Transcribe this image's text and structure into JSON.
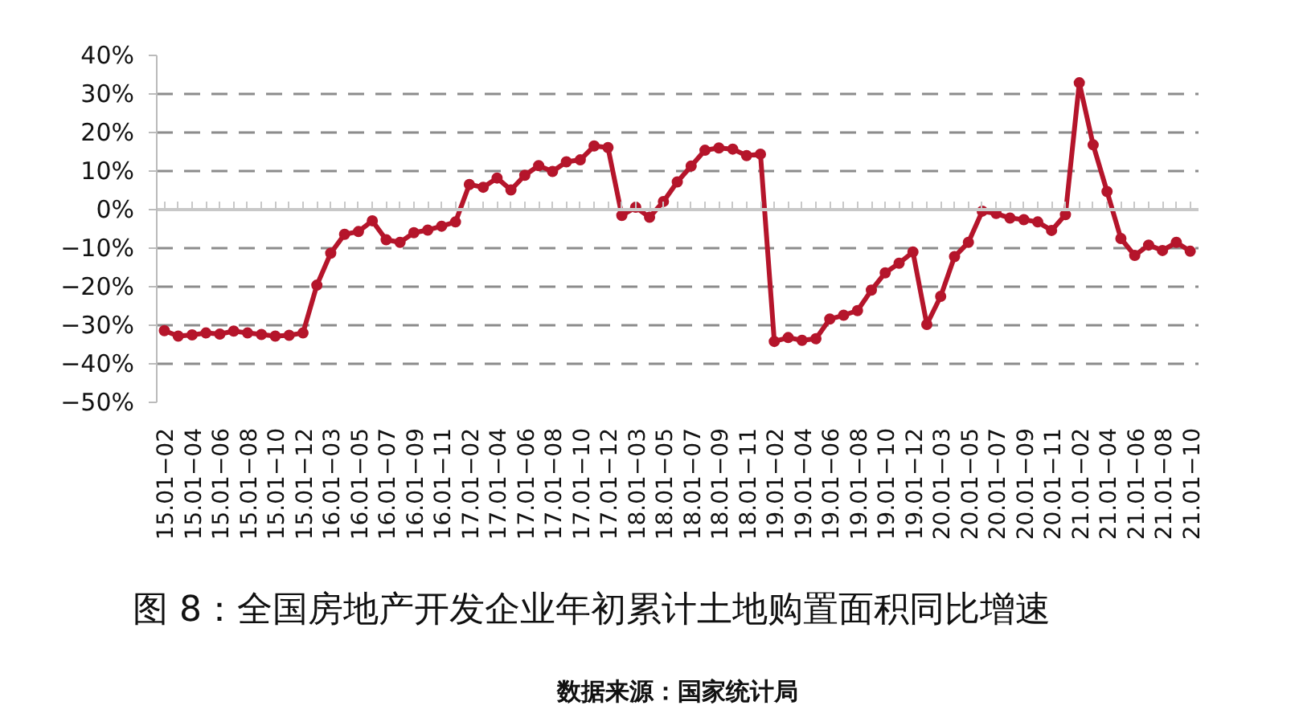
{
  "chart_data": {
    "type": "line",
    "title": "图 8：全国房地产开发企业年初累计土地购置面积同比增速",
    "annotations": [
      "数据来源：国家统计局"
    ],
    "categories": [
      "15.01−02",
      null,
      "15.01−04",
      null,
      "15.01−06",
      null,
      "15.01−08",
      null,
      "15.01−10",
      null,
      "15.01−12",
      null,
      "16.01−03",
      null,
      "16.01−05",
      null,
      "16.01−07",
      null,
      "16.01−09",
      null,
      "16.01−11",
      null,
      "17.01−02",
      null,
      "17.01−04",
      null,
      "17.01−06",
      null,
      "17.01−08",
      null,
      "17.01−10",
      null,
      "17.01−12",
      null,
      "18.01−03",
      null,
      "18.01−05",
      null,
      "18.01−07",
      null,
      "18.01−09",
      null,
      "18.01−11",
      null,
      "19.01−02",
      null,
      "19.01−04",
      null,
      "19.01−06",
      null,
      "19.01−08",
      null,
      "19.01−10",
      null,
      "19.01−12",
      null,
      "20.01−03",
      null,
      "20.01−05",
      null,
      "20.01−07",
      null,
      "20.01−09",
      null,
      "20.01−11",
      null,
      "21.01−02",
      null,
      "21.01−04",
      null,
      "21.01−06",
      null,
      "21.01−08",
      null,
      "21.01−10"
    ],
    "series": [
      {
        "color": "#b5152b",
        "values": [
          -31.4,
          -32.8,
          -32.5,
          -32,
          -32.3,
          -31.5,
          -32,
          -32.4,
          -32.8,
          -32.6,
          -32,
          -19.6,
          -11.3,
          -6.4,
          -5.7,
          -2.9,
          -7.8,
          -8.5,
          -6.0,
          -5.3,
          -4.3,
          -3.2,
          6.5,
          5.8,
          8.2,
          5.1,
          8.9,
          11.4,
          9.9,
          12.4,
          12.9,
          16.5,
          16.1,
          -1.5,
          0.6,
          -2.0,
          2.1,
          7.2,
          11.3,
          15.4,
          16.0,
          15.7,
          14.0,
          14.4,
          -34.2,
          -33.2,
          -33.9,
          -33.5,
          -28.4,
          -27.4,
          -26.2,
          -20.9,
          -16.4,
          -13.9,
          -11.0,
          -29.8,
          -22.5,
          -12.2,
          -8.5,
          -0.4,
          -1.0,
          -2.2,
          -2.6,
          -3.2,
          -5.4,
          -1.3,
          32.9,
          16.8,
          4.7,
          -7.5,
          -11.9,
          -9.2,
          -10.6,
          -8.5,
          -10.8
        ]
      }
    ],
    "ylim": [
      -50,
      40
    ],
    "yticks": [
      {
        "value": 40,
        "label": "40%"
      },
      {
        "value": 30,
        "label": "30%"
      },
      {
        "value": 20,
        "label": "20%"
      },
      {
        "value": 10,
        "label": "10%"
      },
      {
        "value": 0,
        "label": "0%"
      },
      {
        "value": -10,
        "label": "−10%"
      },
      {
        "value": -20,
        "label": "−20%"
      },
      {
        "value": -30,
        "label": "−30%"
      },
      {
        "value": -40,
        "label": "−40%"
      },
      {
        "value": -50,
        "label": "−50%"
      }
    ],
    "grid": "y",
    "marker": "circle",
    "line_style": "solid"
  }
}
